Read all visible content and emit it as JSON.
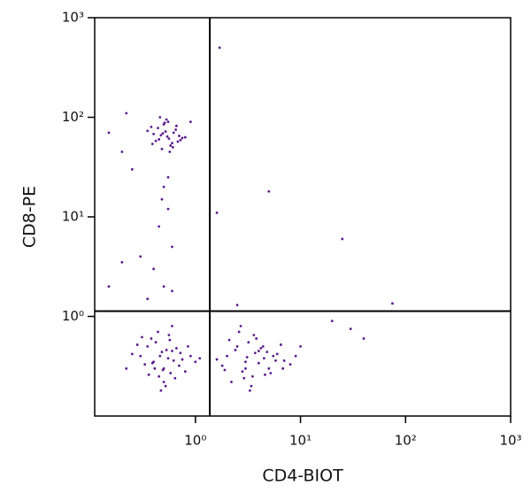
{
  "chart_data": {
    "type": "scatter",
    "xlabel": "CD4-BIOT",
    "ylabel": "CD8-PE",
    "log_x": true,
    "log_y": true,
    "color": "#5a1a8e",
    "xlim": [
      0.11,
      1000
    ],
    "ylim": [
      0.1,
      1000
    ],
    "xticks": [
      {
        "value": 1,
        "label": "10⁰"
      },
      {
        "value": 10,
        "label": "10¹"
      },
      {
        "value": 100,
        "label": "10²"
      },
      {
        "value": 1000,
        "label": "10³"
      }
    ],
    "yticks": [
      {
        "value": 1,
        "label": "10⁰"
      },
      {
        "value": 10,
        "label": "10¹"
      },
      {
        "value": 100,
        "label": "10²"
      },
      {
        "value": 1000,
        "label": "10³"
      }
    ],
    "gates": {
      "x": 1.37,
      "y": 1.13
    },
    "x": [
      0.45,
      0.52,
      0.6,
      0.38,
      0.7,
      0.55,
      0.48,
      0.62,
      0.42,
      0.75,
      0.5,
      0.58,
      0.65,
      0.4,
      0.53,
      0.68,
      0.47,
      0.57,
      0.35,
      0.8,
      0.44,
      0.61,
      0.51,
      0.72,
      0.49,
      0.56,
      0.39,
      0.66,
      0.54,
      0.46,
      0.15,
      0.2,
      0.22,
      0.9,
      0.25,
      0.5,
      0.55,
      0.45,
      0.6,
      0.4,
      0.5,
      0.3,
      0.35,
      0.2,
      0.15,
      0.55,
      0.48,
      0.6,
      1.7,
      1.6,
      5,
      25,
      75,
      2.5,
      20,
      40,
      30,
      0.3,
      0.4,
      0.5,
      0.6,
      0.35,
      0.45,
      0.55,
      0.7,
      0.25,
      0.8,
      0.42,
      0.52,
      0.62,
      0.38,
      0.48,
      0.58,
      0.9,
      0.33,
      0.44,
      0.66,
      0.5,
      0.28,
      0.75,
      0.56,
      0.41,
      0.47,
      0.6,
      1.0,
      0.36,
      0.53,
      0.22,
      0.85,
      0.46,
      0.64,
      0.39,
      0.57,
      0.31,
      0.72,
      0.49,
      1.1,
      2,
      3,
      4,
      5,
      2.5,
      3.5,
      4.5,
      6,
      1.8,
      7,
      3.2,
      2.8,
      3.8,
      5.5,
      2.2,
      4.2,
      8,
      2.6,
      3.4,
      4.8,
      1.6,
      6.5,
      3,
      3.6,
      2.4,
      5.2,
      4,
      9,
      2.1,
      3.3,
      4.4,
      2.9,
      5.8,
      3.7,
      1.9,
      6.8,
      2.7,
      4.6,
      3.1,
      10
    ],
    "values": [
      60,
      72,
      55,
      80,
      65,
      90,
      48,
      70,
      58,
      62,
      85,
      52,
      75,
      68,
      95,
      57,
      66,
      45,
      73,
      63,
      78,
      50,
      88,
      59,
      69,
      61,
      54,
      82,
      64,
      100,
      70,
      45,
      110,
      90,
      30,
      20,
      12,
      8,
      5,
      3,
      2,
      4,
      1.5,
      3.5,
      2,
      25,
      15,
      1.8,
      500,
      11,
      18,
      6,
      1.35,
      1.3,
      0.9,
      0.6,
      0.75,
      0.4,
      0.35,
      0.3,
      0.45,
      0.5,
      0.25,
      0.38,
      0.32,
      0.42,
      0.28,
      0.55,
      0.2,
      0.36,
      0.6,
      0.44,
      0.27,
      0.4,
      0.33,
      0.7,
      0.48,
      0.22,
      0.52,
      0.37,
      0.65,
      0.3,
      0.18,
      0.8,
      0.35,
      0.26,
      0.46,
      0.3,
      0.5,
      0.4,
      0.24,
      0.34,
      0.58,
      0.62,
      0.43,
      0.29,
      0.38,
      0.4,
      0.35,
      0.45,
      0.3,
      0.5,
      0.25,
      0.38,
      0.42,
      0.32,
      0.36,
      0.55,
      0.28,
      0.6,
      0.4,
      0.22,
      0.48,
      0.33,
      0.7,
      0.2,
      0.44,
      0.37,
      0.52,
      0.3,
      0.65,
      0.46,
      0.27,
      0.34,
      0.4,
      0.58,
      0.18,
      0.5,
      0.24,
      0.36,
      0.43,
      0.29,
      0.3,
      0.8,
      0.26,
      0.39,
      0.5
    ]
  }
}
